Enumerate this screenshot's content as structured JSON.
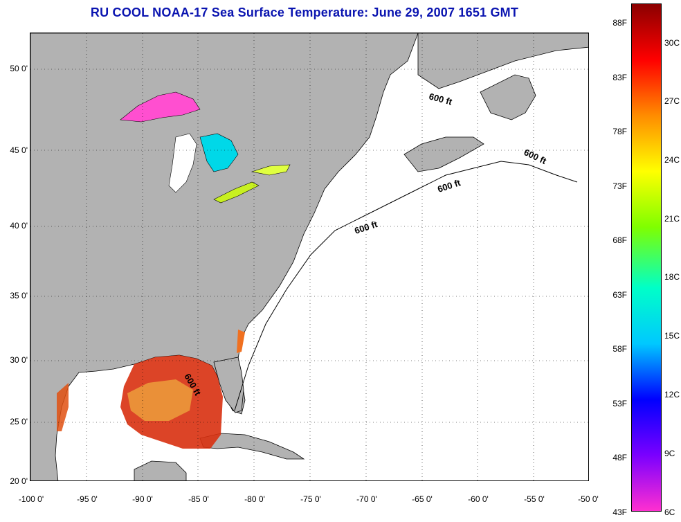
{
  "title": "RU COOL  NOAA-17  Sea Surface Temperature:  June 29, 2007 1651 GMT",
  "map": {
    "lat_labels": [
      "50 0'",
      "45 0'",
      "40 0'",
      "35 0'",
      "30 0'",
      "25 0'",
      "20 0'"
    ],
    "lon_labels": [
      "-100 0'",
      "-95 0'",
      "-90 0'",
      "-85 0'",
      "-80 0'",
      "-75 0'",
      "-70 0'",
      "-65 0'",
      "-60 0'",
      "-55 0'",
      "-50 0'"
    ],
    "isobath_label": "600 ft",
    "land_color": "#b2b2b2",
    "ocean_color": "#ffffff"
  },
  "colorbar": {
    "fahrenheit_labels": [
      "88F",
      "83F",
      "78F",
      "73F",
      "68F",
      "63F",
      "58F",
      "53F",
      "48F",
      "43F"
    ],
    "celsius_labels": [
      "30C",
      "27C",
      "24C",
      "21C",
      "18C",
      "15C",
      "12C",
      "9C",
      "6C"
    ],
    "colors": [
      "#ff2fd0",
      "#7a00ff",
      "#0000ff",
      "#00c8ff",
      "#00ffc8",
      "#7fff00",
      "#ffff00",
      "#ff8c00",
      "#ff0000",
      "#8b0000"
    ]
  }
}
